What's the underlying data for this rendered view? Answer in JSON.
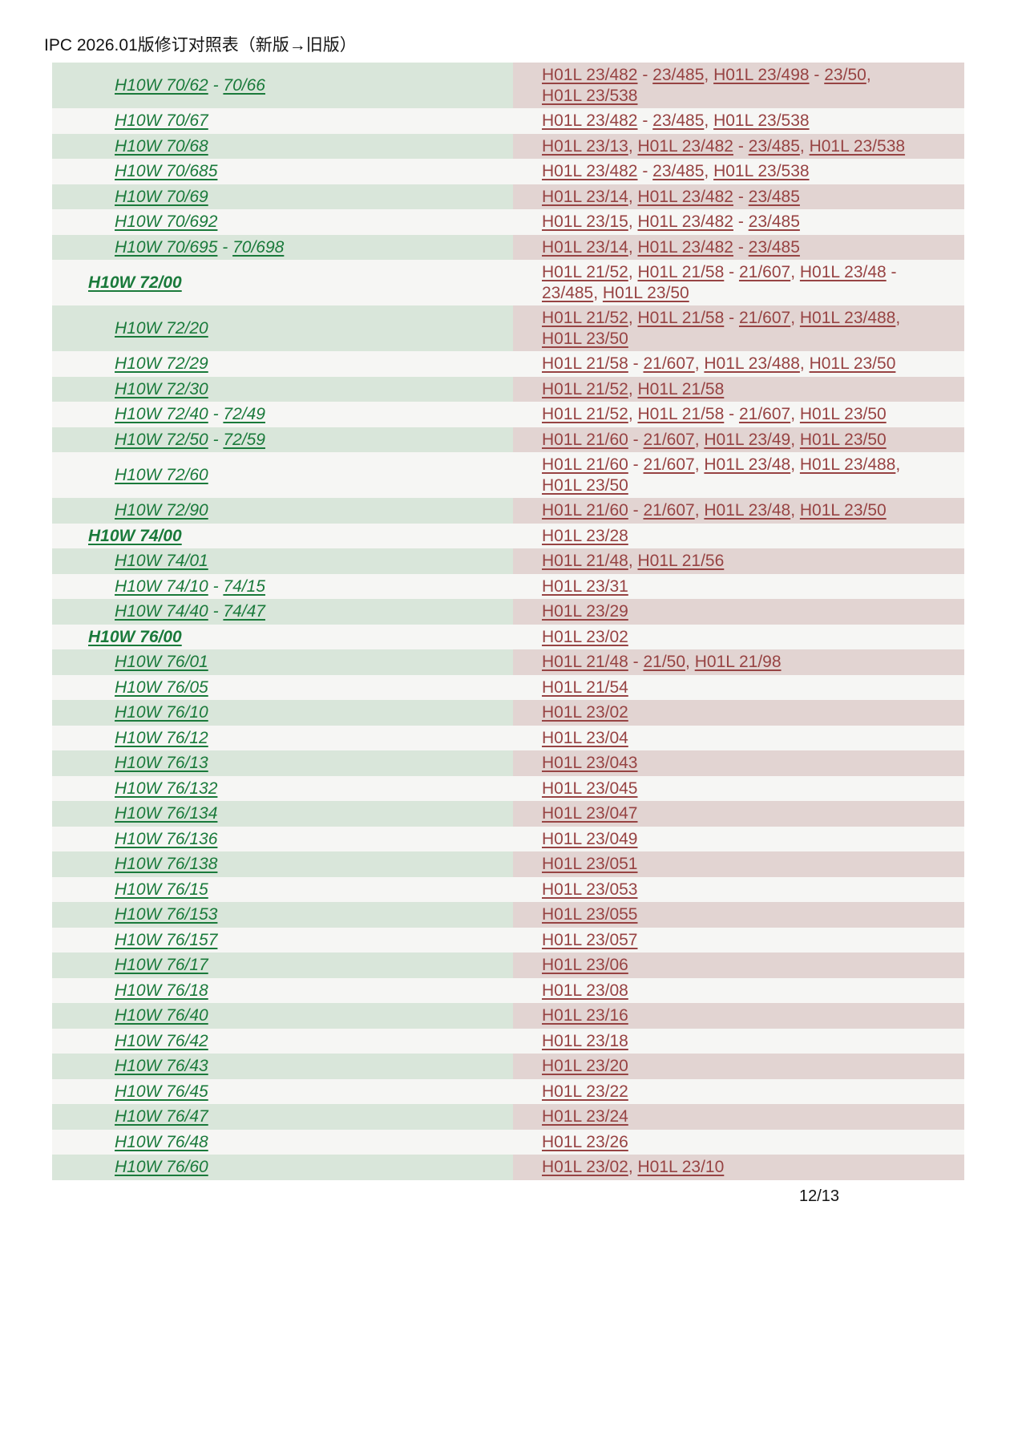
{
  "title": "IPC 2026.01版修订对照表（新版→旧版）",
  "page_number": "12/13",
  "colors": {
    "new_link_green": "#1a7a3b",
    "old_link_maroon": "#974343",
    "new_row_bg_green": "#d9e6da",
    "old_row_bg_pink": "#e2d4d2",
    "plain_row_bg": "#f6f6f4"
  },
  "table": {
    "rows": [
      {
        "type": "sub",
        "new": "H10W 70/62 - 70/66",
        "old": "H01L 23/482 - 23/485, H01L 23/498 - 23/50, H01L 23/538"
      },
      {
        "type": "sub",
        "new": "H10W 70/67",
        "old": "H01L 23/482 - 23/485, H01L 23/538"
      },
      {
        "type": "sub",
        "new": "H10W 70/68",
        "old": "H01L 23/13, H01L 23/482 - 23/485, H01L 23/538"
      },
      {
        "type": "sub",
        "new": "H10W 70/685",
        "old": "H01L 23/482 - 23/485, H01L 23/538"
      },
      {
        "type": "sub",
        "new": "H10W 70/69",
        "old": "H01L 23/14, H01L 23/482 - 23/485"
      },
      {
        "type": "sub",
        "new": "H10W 70/692",
        "old": "H01L 23/15, H01L 23/482 - 23/485"
      },
      {
        "type": "sub",
        "new": "H10W 70/695 - 70/698",
        "old": "H01L 23/14, H01L 23/482 - 23/485"
      },
      {
        "type": "header",
        "new": "H10W 72/00",
        "old": "H01L 21/52, H01L 21/58 - 21/607, H01L 23/48 - 23/485, H01L 23/50"
      },
      {
        "type": "sub",
        "new": "H10W 72/20",
        "old": "H01L 21/52, H01L 21/58 - 21/607, H01L 23/488, H01L 23/50"
      },
      {
        "type": "sub",
        "new": "H10W 72/29",
        "old": "H01L 21/58 - 21/607, H01L 23/488, H01L 23/50"
      },
      {
        "type": "sub",
        "new": "H10W 72/30",
        "old": "H01L 21/52, H01L 21/58"
      },
      {
        "type": "sub",
        "new": "H10W 72/40 - 72/49",
        "old": "H01L 21/52, H01L 21/58 - 21/607, H01L 23/50"
      },
      {
        "type": "sub",
        "new": "H10W 72/50 - 72/59",
        "old": "H01L 21/60 - 21/607, H01L 23/49, H01L 23/50"
      },
      {
        "type": "sub",
        "new": "H10W 72/60",
        "old": "H01L 21/60 - 21/607, H01L 23/48, H01L 23/488, H01L 23/50"
      },
      {
        "type": "sub",
        "new": "H10W 72/90",
        "old": "H01L 21/60 - 21/607, H01L 23/48, H01L 23/50"
      },
      {
        "type": "header",
        "new": "H10W 74/00",
        "old": "H01L 23/28"
      },
      {
        "type": "sub",
        "new": "H10W 74/01",
        "old": "H01L 21/48, H01L 21/56"
      },
      {
        "type": "sub",
        "new": "H10W 74/10 - 74/15",
        "old": "H01L 23/31"
      },
      {
        "type": "sub",
        "new": "H10W 74/40 - 74/47",
        "old": "H01L 23/29"
      },
      {
        "type": "header",
        "new": "H10W 76/00",
        "old": "H01L 23/02"
      },
      {
        "type": "sub",
        "new": "H10W 76/01",
        "old": "H01L 21/48 - 21/50, H01L 21/98"
      },
      {
        "type": "sub",
        "new": "H10W 76/05",
        "old": "H01L 21/54"
      },
      {
        "type": "sub",
        "new": "H10W 76/10",
        "old": "H01L 23/02"
      },
      {
        "type": "sub",
        "new": "H10W 76/12",
        "old": "H01L 23/04"
      },
      {
        "type": "sub",
        "new": "H10W 76/13",
        "old": "H01L 23/043"
      },
      {
        "type": "sub",
        "new": "H10W 76/132",
        "old": "H01L 23/045"
      },
      {
        "type": "sub",
        "new": "H10W 76/134",
        "old": "H01L 23/047"
      },
      {
        "type": "sub",
        "new": "H10W 76/136",
        "old": "H01L 23/049"
      },
      {
        "type": "sub",
        "new": "H10W 76/138",
        "old": "H01L 23/051"
      },
      {
        "type": "sub",
        "new": "H10W 76/15",
        "old": "H01L 23/053"
      },
      {
        "type": "sub",
        "new": "H10W 76/153",
        "old": "H01L 23/055"
      },
      {
        "type": "sub",
        "new": "H10W 76/157",
        "old": "H01L 23/057"
      },
      {
        "type": "sub",
        "new": "H10W 76/17",
        "old": "H01L 23/06"
      },
      {
        "type": "sub",
        "new": "H10W 76/18",
        "old": "H01L 23/08"
      },
      {
        "type": "sub",
        "new": "H10W 76/40",
        "old": "H01L 23/16"
      },
      {
        "type": "sub",
        "new": "H10W 76/42",
        "old": "H01L 23/18"
      },
      {
        "type": "sub",
        "new": "H10W 76/43",
        "old": "H01L 23/20"
      },
      {
        "type": "sub",
        "new": "H10W 76/45",
        "old": "H01L 23/22"
      },
      {
        "type": "sub",
        "new": "H10W 76/47",
        "old": "H01L 23/24"
      },
      {
        "type": "sub",
        "new": "H10W 76/48",
        "old": "H01L 23/26"
      },
      {
        "type": "sub",
        "new": "H10W 76/60",
        "old": "H01L 23/02, H01L 23/10"
      }
    ]
  }
}
